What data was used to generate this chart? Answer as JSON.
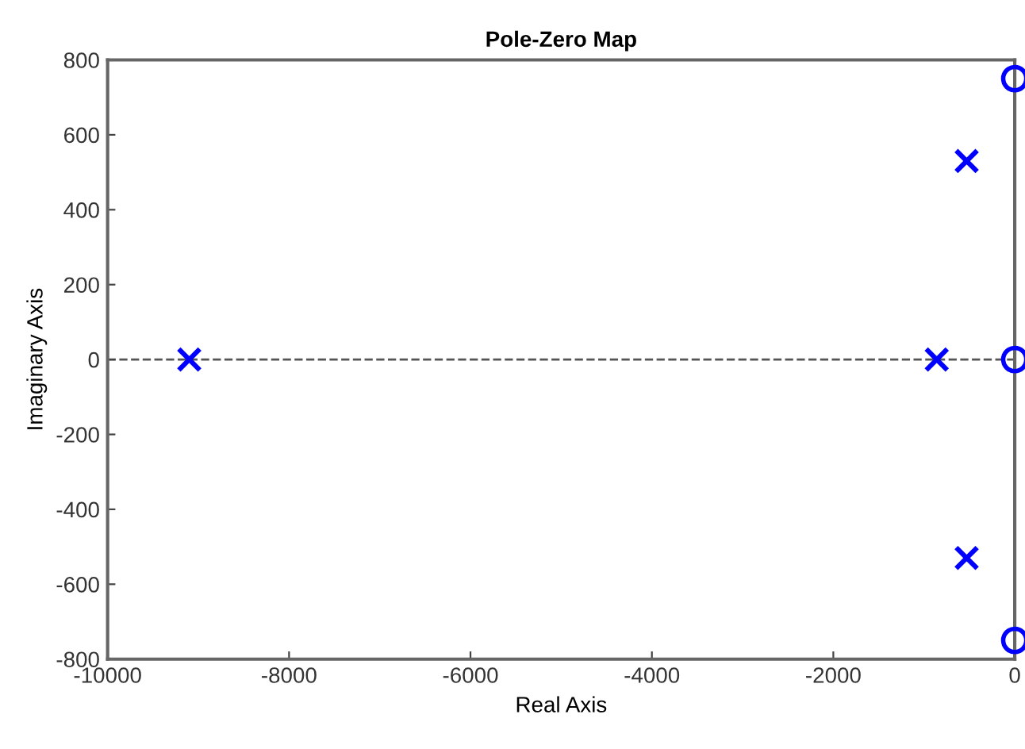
{
  "chart_data": {
    "type": "scatter",
    "title": "Pole-Zero Map",
    "xlabel": "Real Axis",
    "ylabel": "Imaginary Axis",
    "series": [
      {
        "color": "#0000ff",
        "marker": "cross",
        "x": [
          -9100,
          -860,
          -530,
          -530
        ],
        "values": [
          0,
          0,
          530,
          -530
        ]
      },
      {
        "color": "#0000ff",
        "marker": "circle",
        "x": [
          0,
          0,
          0
        ],
        "values": [
          750,
          0,
          -750
        ]
      }
    ],
    "xlim": [
      -10000,
      0
    ],
    "xticks": [
      -10000,
      -8000,
      -6000,
      -4000,
      -2000,
      0
    ],
    "ylim": [
      -800,
      800
    ],
    "yticks": [
      -800,
      -600,
      -400,
      -200,
      0,
      200,
      400,
      600,
      800
    ],
    "ref_lines": [
      {
        "axis": "y",
        "value": 0,
        "color": "#555555",
        "line_style": "dashed"
      }
    ],
    "grid": false
  }
}
